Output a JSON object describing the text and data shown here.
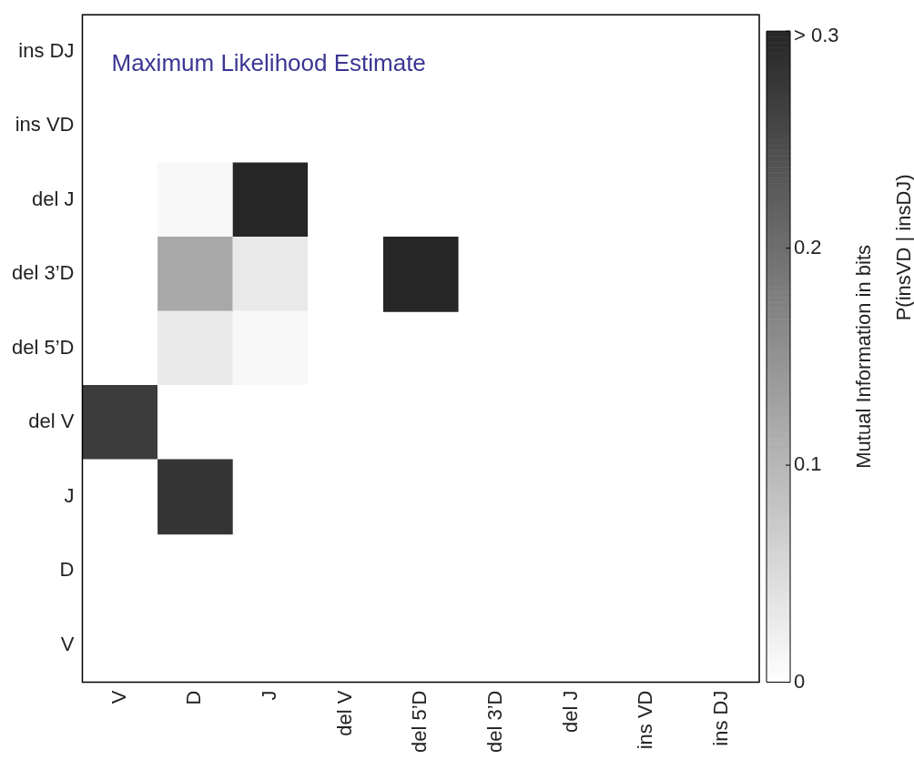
{
  "chart_data": {
    "type": "heatmap",
    "categories": [
      "V",
      "D",
      "J",
      "del V",
      "del 5’D",
      "del 3’D",
      "del J",
      "ins VD",
      "ins DJ"
    ],
    "y_categories": [
      "ins DJ",
      "ins VD",
      "del J",
      "del 3’D",
      "del 5’D",
      "del V",
      "J",
      "D",
      "V"
    ],
    "cells": [
      [
        0,
        0,
        0,
        0,
        0,
        0,
        0,
        0,
        null
      ],
      [
        0,
        0,
        0,
        0,
        0,
        0,
        0,
        null,
        null
      ],
      [
        0,
        0.01,
        0.3,
        0,
        0,
        0,
        null,
        null,
        null
      ],
      [
        0,
        0.12,
        0.03,
        0,
        0.3,
        null,
        null,
        null,
        null
      ],
      [
        0,
        0.03,
        0.01,
        0,
        null,
        null,
        null,
        null,
        null
      ],
      [
        0.27,
        0,
        0,
        null,
        null,
        null,
        null,
        null,
        null
      ],
      [
        0,
        0.28,
        null,
        null,
        null,
        null,
        null,
        null,
        null
      ],
      [
        0,
        null,
        null,
        null,
        null,
        null,
        null,
        null,
        null
      ],
      [
        null,
        null,
        null,
        null,
        null,
        null,
        null,
        null,
        null
      ]
    ],
    "clim": [
      0,
      0.3
    ],
    "cticks": [
      0,
      0.1,
      0.2,
      {
        "value": 0.3,
        "label": "> 0.3"
      }
    ],
    "clabel": "Mutual Information in bits",
    "annotations": [
      "Maximum Likelihood Estimate",
      "P(insVD | insDJ)"
    ],
    "grid": false
  }
}
